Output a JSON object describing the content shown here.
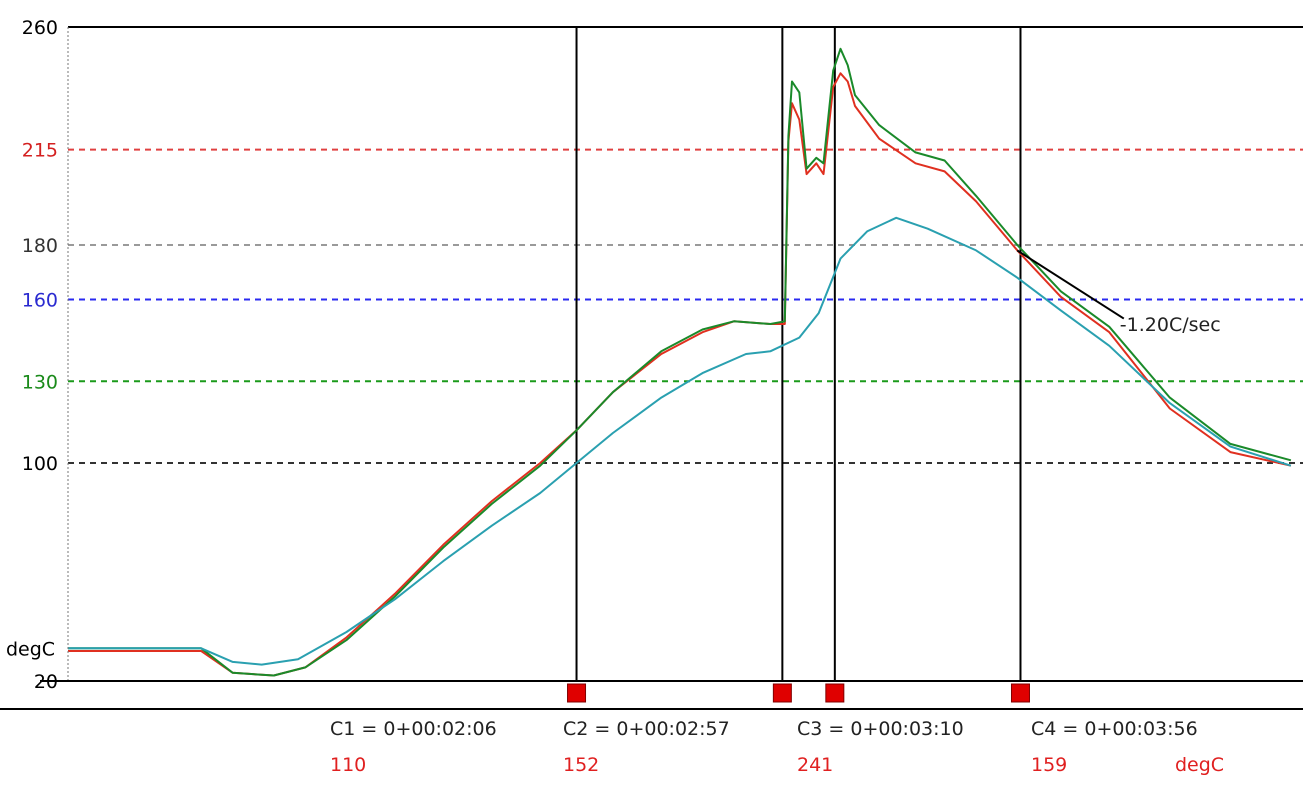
{
  "chart_data": {
    "type": "line",
    "ylabel": "degC",
    "ylim": [
      20,
      260
    ],
    "x_unit": "minutes",
    "xlim": [
      0,
      5.1
    ],
    "y_ticks": [
      {
        "label": "260",
        "value": 260,
        "color": "#000000"
      },
      {
        "label": "215",
        "value": 215,
        "color": "#d42020"
      },
      {
        "label": "180",
        "value": 180,
        "color": "#333333"
      },
      {
        "label": "160",
        "value": 160,
        "color": "#2a2ad0"
      },
      {
        "label": "130",
        "value": 130,
        "color": "#1a8a1a"
      },
      {
        "label": "100",
        "value": 100,
        "color": "#000000"
      },
      {
        "label": "20",
        "value": 20,
        "color": "#000000"
      }
    ],
    "reference_lines": [
      {
        "value": 215,
        "color": "#e04040"
      },
      {
        "value": 180,
        "color": "#9a9a9a"
      },
      {
        "value": 160,
        "color": "#2a2af0"
      },
      {
        "value": 130,
        "color": "#1a9a1a"
      },
      {
        "value": 100,
        "color": "#333333"
      }
    ],
    "series": [
      {
        "color": "#e03020",
        "x": [
          0,
          0.55,
          0.68,
          0.85,
          0.98,
          1.15,
          1.35,
          1.55,
          1.75,
          1.95,
          2.1,
          2.25,
          2.45,
          2.62,
          2.75,
          2.9,
          2.96,
          2.975,
          2.99,
          3.02,
          3.05,
          3.09,
          3.12,
          3.16,
          3.19,
          3.22,
          3.25,
          3.35,
          3.5,
          3.62,
          3.75,
          3.92,
          4.1,
          4.3,
          4.55,
          4.8,
          5.05
        ],
        "y": [
          31,
          31,
          23,
          22,
          25,
          36,
          52,
          70,
          86,
          100,
          112,
          126,
          140,
          148,
          152,
          151,
          151,
          218,
          232,
          226,
          206,
          210,
          206,
          238,
          243,
          240,
          231,
          219,
          210,
          207,
          196,
          178,
          161,
          148,
          120,
          104,
          99
        ]
      },
      {
        "color": "#1a8a2a",
        "x": [
          0,
          0.55,
          0.68,
          0.85,
          0.98,
          1.15,
          1.35,
          1.55,
          1.75,
          1.95,
          2.1,
          2.25,
          2.45,
          2.62,
          2.75,
          2.9,
          2.96,
          2.975,
          2.99,
          3.02,
          3.05,
          3.09,
          3.12,
          3.16,
          3.19,
          3.22,
          3.25,
          3.35,
          3.5,
          3.62,
          3.75,
          3.92,
          4.1,
          4.3,
          4.55,
          4.8,
          5.05
        ],
        "y": [
          32,
          32,
          23,
          22,
          25,
          35,
          51,
          69,
          85,
          99,
          112,
          126,
          141,
          149,
          152,
          151,
          152,
          220,
          240,
          236,
          208,
          212,
          210,
          244,
          252,
          246,
          235,
          224,
          214,
          211,
          198,
          180,
          163,
          150,
          124,
          107,
          101
        ]
      },
      {
        "color": "#2aa0b0",
        "x": [
          0,
          0.55,
          0.68,
          0.8,
          0.95,
          1.15,
          1.35,
          1.55,
          1.75,
          1.95,
          2.1,
          2.25,
          2.45,
          2.62,
          2.8,
          2.9,
          3.02,
          3.1,
          3.19,
          3.3,
          3.42,
          3.55,
          3.75,
          3.92,
          4.1,
          4.3,
          4.55,
          4.8,
          5.05
        ],
        "y": [
          32,
          32,
          27,
          26,
          28,
          38,
          50,
          64,
          77,
          89,
          100,
          111,
          124,
          133,
          140,
          141,
          146,
          155,
          175,
          185,
          190,
          186,
          178,
          168,
          156,
          143,
          122,
          106,
          99
        ]
      }
    ],
    "cursors": [
      {
        "label": "C1 = 0+00:02:06",
        "value": "110",
        "x": 2.1
      },
      {
        "label": "C2 = 0+00:02:57",
        "value": "152",
        "x": 2.95
      },
      {
        "label": "C3 = 0+00:03:10",
        "value": "241",
        "x": 3.16667
      },
      {
        "label": "C4 = 0+00:03:56",
        "value": "159",
        "x": 3.93333
      }
    ],
    "value_unit": "degC",
    "annotation": {
      "text": "-1.20C/sec",
      "x": 4.36,
      "y": 151
    },
    "slope_line": {
      "x": [
        3.92,
        4.36
      ],
      "y": [
        178,
        153
      ],
      "color": "#000000"
    },
    "marker_color": "#e00000",
    "value_color": "#e02020"
  }
}
